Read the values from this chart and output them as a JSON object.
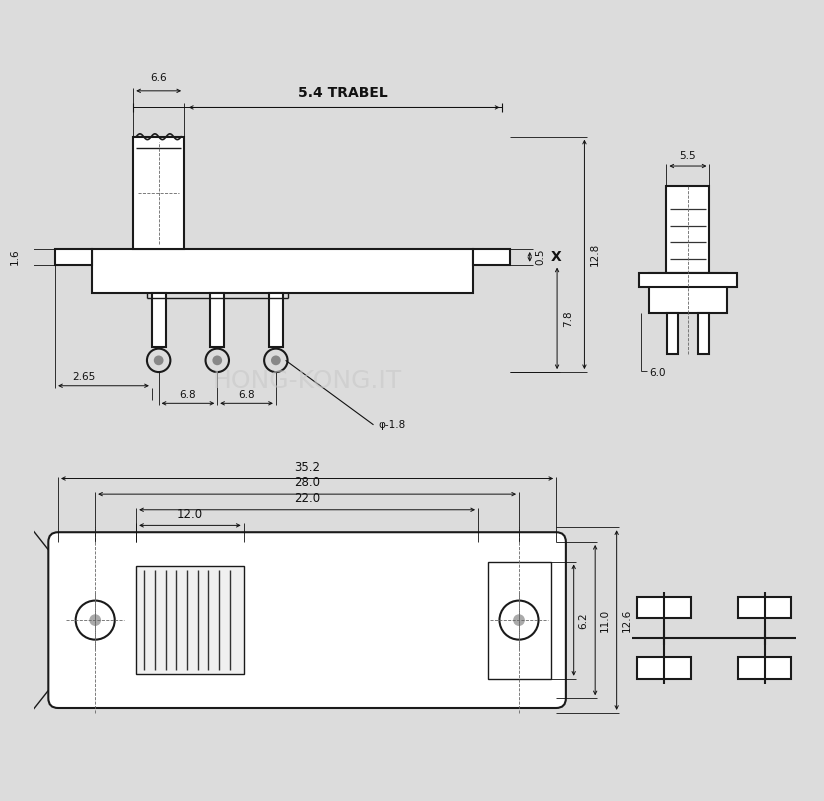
{
  "bg_color": "#dcdcdc",
  "line_color": "#1a1a1a",
  "dim_color": "#111111",
  "font_size_dim": 7.5,
  "font_size_travel": 10.0,
  "dims": {
    "top_width_knob": "6.6",
    "travel": "5.4 TRABEL",
    "height_x": "X",
    "dim_05": "0.5",
    "dim_78": "7.8",
    "dim_128": "12.8",
    "dim_16": "1.6",
    "dim_265": "2.65",
    "dim_68a": "6.8",
    "dim_68b": "6.8",
    "dim_pin": "φ-1.8",
    "dim_352": "35.2",
    "dim_280": "28.0",
    "dim_220": "22.0",
    "dim_120": "12.0",
    "dim_62": "6.2",
    "dim_110": "11.0",
    "dim_126": "12.6",
    "dim_55": "5.5",
    "dim_60": "6.0"
  }
}
